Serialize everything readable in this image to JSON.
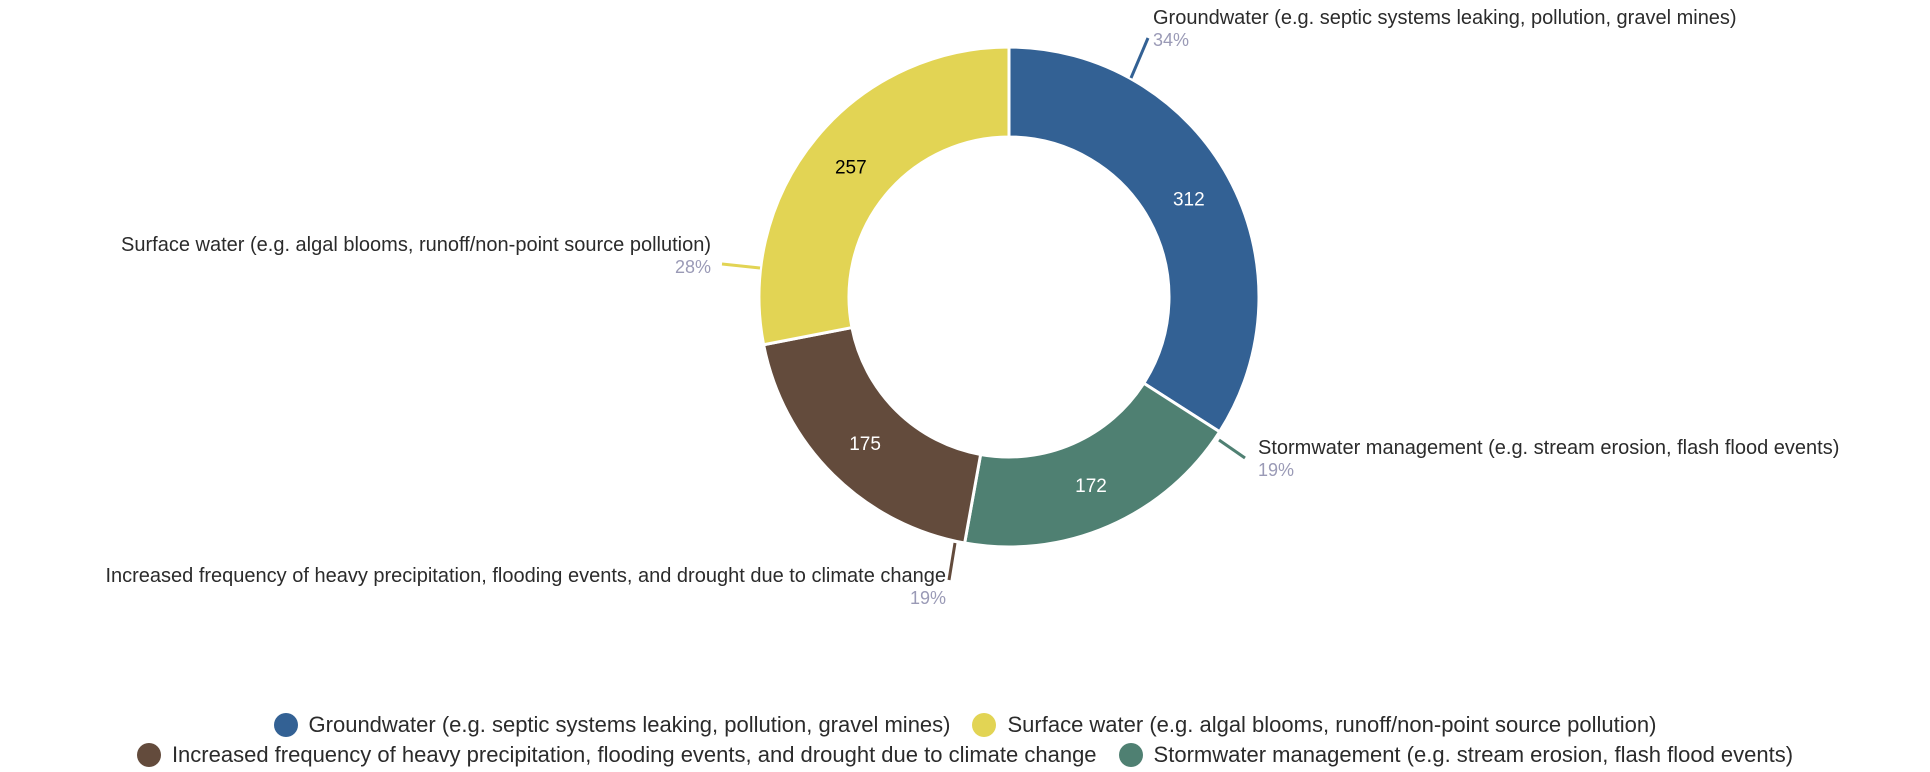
{
  "chart_data": {
    "type": "pie",
    "variant": "donut",
    "slices": [
      {
        "label": "Groundwater (e.g. septic systems leaking, pollution, gravel mines)",
        "value": 312,
        "percent_label": "34%",
        "color": "#336194",
        "value_text_color": "#ffffff"
      },
      {
        "label": "Stormwater management (e.g. stream erosion, flash flood events)",
        "value": 172,
        "percent_label": "19%",
        "color": "#4f8072",
        "value_text_color": "#ffffff"
      },
      {
        "label": "Increased frequency of heavy precipitation, flooding events, and drought due to climate change",
        "value": 175,
        "percent_label": "19%",
        "color": "#634b3c",
        "value_text_color": "#ffffff"
      },
      {
        "label": "Surface water (e.g. algal blooms, runoff/non-point source pollution)",
        "value": 257,
        "percent_label": "28%",
        "color": "#e2d454",
        "value_text_color": "#000000"
      }
    ],
    "legend": {
      "placement": "bottom",
      "rows": [
        [
          "Groundwater (e.g. septic systems leaking, pollution, gravel mines)",
          "Surface water (e.g. algal blooms, runoff/non-point source pollution)"
        ],
        [
          "Increased frequency of heavy precipitation, flooding events, and drought due to climate change",
          "Stormwater management (e.g. stream erosion, flash flood events)"
        ]
      ]
    }
  }
}
